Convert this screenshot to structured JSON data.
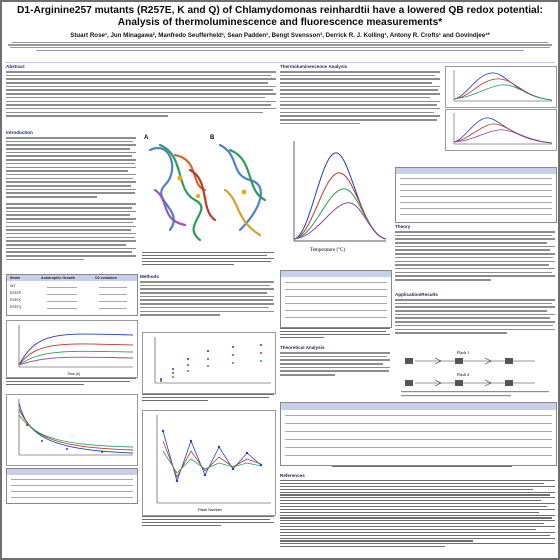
{
  "poster": {
    "title": "D1-Arginine257 mutants (R257E, K and Q) of Chlamydomonas reinhardtii have a lowered QB redox potential: Analysis of thermoluminescence and fluorescence measurements*",
    "authors": "Stuart Rose¹, Jun Minagawa², Manfredo Seufferheld¹, Sean Padden¹, Bengt Svensson³, Derrick R. J. Kolling¹, Antony R. Crofts¹ and Govindjee¹*",
    "sections": {
      "abstract": "Abstract",
      "introduction": "Introduction",
      "methods": "Methods",
      "thermo": "Thermoluminescence Analysis",
      "equation": "Theoretical Analysis",
      "theory": "Theory",
      "conclusion": "Application/Results",
      "references": "References"
    },
    "tables": {
      "left_header": [
        "Strain",
        "Autotrophic Growth",
        "O2 evolution"
      ],
      "left_rows": [
        "WT",
        "R257E",
        "R257K",
        "R257Q"
      ]
    },
    "figure_labels": {
      "thermo_axis": "Temperature (°C)",
      "fluor_axis": "Time (s)",
      "flash_axis": "Flash Number",
      "flash_title": "Flash 1",
      "flash_title2": "Flash 2",
      "fig_tag_a": "A",
      "fig_tag_b": "B"
    },
    "colors": {
      "title_bar": "#b9c7e6",
      "header_text": "#1a2a66"
    }
  }
}
